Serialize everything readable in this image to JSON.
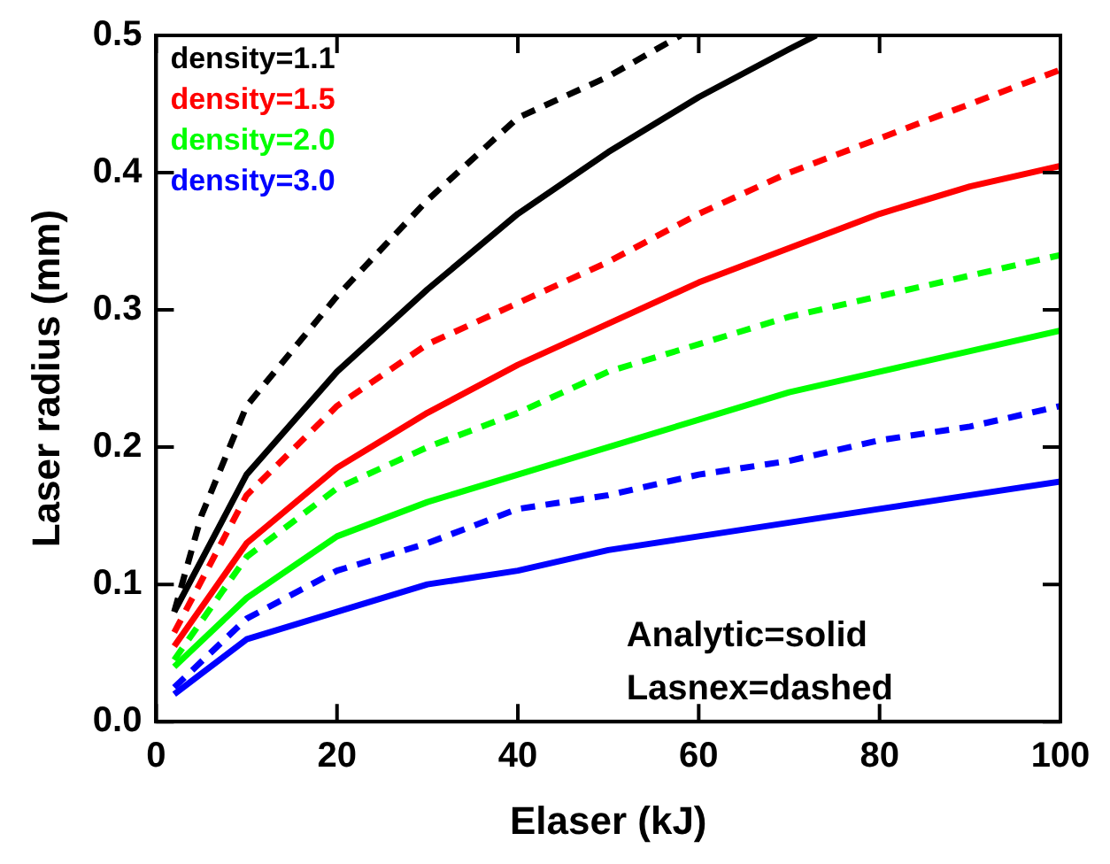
{
  "chart_data": {
    "type": "line",
    "xlabel": "Elaser (kJ)",
    "ylabel": "Laser radius (mm)",
    "xlim": [
      0,
      100
    ],
    "xticks": [
      0,
      20,
      40,
      60,
      80,
      100
    ],
    "ylim": [
      0,
      0.5
    ],
    "yticks": [
      {
        "value": 0,
        "label": "0.0"
      },
      0.1,
      0.2,
      0.3,
      0.4,
      0.5
    ],
    "grid": false,
    "legend": "top left",
    "marker": "none",
    "annotations": [
      "Analytic=solid",
      "Lasnex=dashed"
    ],
    "series": [
      {
        "name": "density=1.1",
        "color": "#000000",
        "line_style": "solid",
        "x": [
          2,
          10,
          20,
          30,
          40,
          50,
          60,
          70,
          73
        ],
        "values": [
          0.08,
          0.18,
          0.255,
          0.315,
          0.37,
          0.415,
          0.455,
          0.49,
          0.5
        ]
      },
      {
        "color": "#000000",
        "line_style": "dashed",
        "x": [
          2,
          5,
          10,
          20,
          30,
          40,
          50,
          58
        ],
        "values": [
          0.08,
          0.15,
          0.23,
          0.31,
          0.38,
          0.44,
          0.47,
          0.5
        ]
      },
      {
        "name": "density=1.5",
        "color": "#ff0000",
        "line_style": "solid",
        "x": [
          2,
          10,
          20,
          30,
          40,
          50,
          60,
          70,
          80,
          90,
          100
        ],
        "values": [
          0.055,
          0.13,
          0.185,
          0.225,
          0.26,
          0.29,
          0.32,
          0.345,
          0.37,
          0.39,
          0.405
        ]
      },
      {
        "color": "#ff0000",
        "line_style": "dashed",
        "x": [
          2,
          10,
          20,
          30,
          40,
          50,
          60,
          70,
          80,
          90,
          100
        ],
        "values": [
          0.065,
          0.165,
          0.23,
          0.275,
          0.305,
          0.335,
          0.37,
          0.4,
          0.425,
          0.45,
          0.475
        ]
      },
      {
        "name": "density=2.0",
        "color": "#00ff00",
        "line_style": "solid",
        "x": [
          2,
          10,
          20,
          30,
          40,
          50,
          60,
          70,
          80,
          90,
          100
        ],
        "values": [
          0.04,
          0.09,
          0.135,
          0.16,
          0.18,
          0.2,
          0.22,
          0.24,
          0.255,
          0.27,
          0.285
        ]
      },
      {
        "color": "#00ff00",
        "line_style": "dashed",
        "x": [
          2,
          10,
          20,
          30,
          40,
          50,
          60,
          70,
          80,
          90,
          100
        ],
        "values": [
          0.045,
          0.12,
          0.17,
          0.2,
          0.225,
          0.255,
          0.275,
          0.295,
          0.31,
          0.325,
          0.34
        ]
      },
      {
        "name": "density=3.0",
        "color": "#0000ff",
        "line_style": "solid",
        "x": [
          2,
          10,
          20,
          30,
          40,
          50,
          60,
          70,
          80,
          90,
          100
        ],
        "values": [
          0.02,
          0.06,
          0.08,
          0.1,
          0.11,
          0.125,
          0.135,
          0.145,
          0.155,
          0.165,
          0.175
        ]
      },
      {
        "color": "#0000ff",
        "line_style": "dashed",
        "x": [
          2,
          10,
          20,
          30,
          40,
          50,
          60,
          70,
          80,
          90,
          100
        ],
        "values": [
          0.025,
          0.075,
          0.11,
          0.13,
          0.155,
          0.165,
          0.18,
          0.19,
          0.205,
          0.215,
          0.23
        ]
      }
    ]
  }
}
